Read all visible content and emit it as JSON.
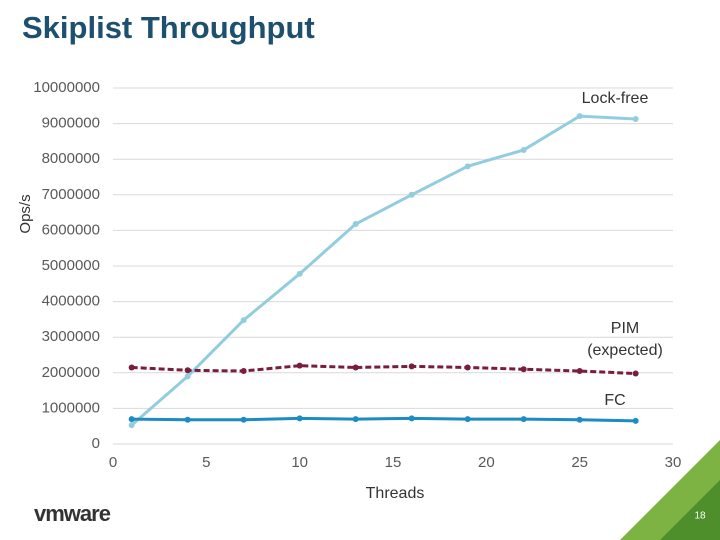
{
  "chart_data": {
    "type": "line",
    "title": "Skiplist Throughput",
    "ylabel": "Ops/s",
    "xlabel": "Threads",
    "x": [
      1,
      4,
      7,
      10,
      13,
      16,
      19,
      22,
      25,
      28
    ],
    "series": [
      {
        "name": "Lock-free",
        "color": "#92cddf",
        "dashed": false,
        "values": [
          530000,
          1900000,
          3480000,
          4780000,
          6180000,
          7000000,
          7800000,
          8260000,
          9210000,
          9130000
        ]
      },
      {
        "name": "PIM (expected)",
        "color": "#7a1c3c",
        "dashed": true,
        "values": [
          2150000,
          2070000,
          2050000,
          2200000,
          2150000,
          2180000,
          2150000,
          2100000,
          2050000,
          1980000
        ]
      },
      {
        "name": "FC",
        "color": "#1d8bc4",
        "dashed": false,
        "values": [
          700000,
          680000,
          680000,
          720000,
          700000,
          720000,
          700000,
          700000,
          680000,
          650000
        ]
      }
    ],
    "xlim": [
      0,
      30
    ],
    "xticks": [
      0,
      5,
      10,
      15,
      20,
      25,
      30
    ],
    "ylim": [
      0,
      10000000
    ],
    "yticks": [
      0,
      1000000,
      2000000,
      3000000,
      4000000,
      5000000,
      6000000,
      7000000,
      8000000,
      9000000,
      10000000
    ],
    "grid": true
  },
  "footer": {
    "logo": "vmware",
    "page_number": "18"
  }
}
